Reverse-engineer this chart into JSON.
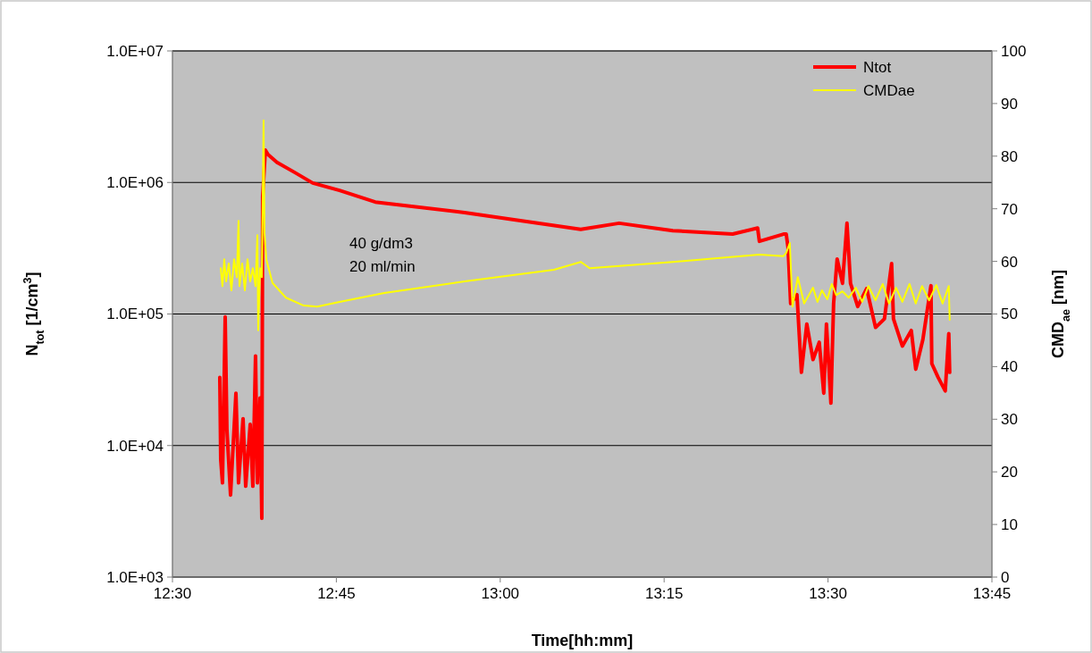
{
  "chart_data": {
    "type": "line",
    "xlabel": "Time[hh:mm]",
    "ylabel": "N$_{tot}$ [1/cm$^{3}$]",
    "y2label": "CMD$_{ae}$ [nm]",
    "xlim": [
      12.5,
      13.75
    ],
    "xticks": [
      {
        "value": 12.5,
        "label": "12:30"
      },
      {
        "value": 12.75,
        "label": "12:45"
      },
      {
        "value": 13,
        "label": "13:00"
      },
      {
        "value": 13.25,
        "label": "13:15"
      },
      {
        "value": 13.5,
        "label": "13:30"
      },
      {
        "value": 13.75,
        "label": "13:45"
      }
    ],
    "ylim": [
      1000,
      10000000
    ],
    "yticks": [
      {
        "value": 1000,
        "label": "1.0E+03"
      },
      {
        "value": 10000,
        "label": "1.0E+04"
      },
      {
        "value": 100000,
        "label": "1.0E+05"
      },
      {
        "value": 1000000,
        "label": "1.0E+06"
      },
      {
        "value": 10000000,
        "label": "1.0E+07"
      }
    ],
    "y2lim": [
      0,
      100
    ],
    "y2ticks": [
      0,
      10,
      20,
      30,
      40,
      50,
      60,
      70,
      80,
      90,
      100
    ],
    "log": "y",
    "grid": "y",
    "legend": "top right",
    "line_style": "solid",
    "marker": "none",
    "annotations": [
      "40 g/dm3",
      "20 ml/min"
    ],
    "series": [
      {
        "name": "Ntot",
        "color": "#ff0000",
        "x": [
          12.5722,
          12.5736,
          12.5763,
          12.5804,
          12.5831,
          12.5886,
          12.5968,
          12.6008,
          12.6077,
          12.6117,
          12.6186,
          12.6226,
          12.6267,
          12.6295,
          12.6336,
          12.6363,
          12.6376,
          12.6417,
          12.6458,
          12.6594,
          12.6867,
          12.7139,
          12.7548,
          12.8094,
          12.9456,
          13.1228,
          13.1814,
          13.2632,
          13.3545,
          13.3926,
          13.3953,
          13.4321,
          13.4362,
          13.439,
          13.443,
          13.4526,
          13.4594,
          13.4676,
          13.4771,
          13.4866,
          13.4935,
          13.4976,
          13.5044,
          13.5085,
          13.5139,
          13.5221,
          13.5289,
          13.5343,
          13.5453,
          13.5589,
          13.5725,
          13.5861,
          13.597,
          13.5998,
          13.6134,
          13.627,
          13.6338,
          13.6447,
          13.657,
          13.6583,
          13.6679,
          13.6788,
          13.6842,
          13.6856
        ],
        "values": [
          33000,
          7800,
          5200,
          95000,
          13000,
          4200,
          25000,
          5200,
          16000,
          4900,
          14500,
          4900,
          48000,
          5200,
          23000,
          2800,
          780000,
          1760000,
          1630000,
          1420000,
          1190000,
          990000,
          870000,
          710000,
          590000,
          440000,
          490000,
          430000,
          405000,
          450000,
          357000,
          405000,
          405000,
          320000,
          120000,
          140000,
          36000,
          84000,
          45000,
          61000,
          25000,
          84000,
          21000,
          120000,
          262000,
          171000,
          490000,
          171000,
          114000,
          156000,
          79000,
          92000,
          242000,
          92000,
          57000,
          75000,
          38000,
          64000,
          164000,
          42000,
          33000,
          26000,
          71000,
          36000
        ]
      },
      {
        "name": "CMDae",
        "color": "#ffff00",
        "axis": "y2",
        "x": [
          12.5736,
          12.5763,
          12.579,
          12.5818,
          12.5859,
          12.5899,
          12.594,
          12.5981,
          12.6008,
          12.6022,
          12.6063,
          12.6104,
          12.6145,
          12.6186,
          12.6226,
          12.6267,
          12.6295,
          12.6308,
          12.6336,
          12.6363,
          12.639,
          12.6404,
          12.6431,
          12.6526,
          12.6731,
          12.7003,
          12.7208,
          12.7548,
          12.823,
          12.9456,
          13.0819,
          13.1228,
          13.1364,
          13.2632,
          13.3953,
          13.4321,
          13.4362,
          13.4417,
          13.4458,
          13.4539,
          13.4635,
          13.4771,
          13.4839,
          13.4907,
          13.4989,
          13.5057,
          13.5125,
          13.5221,
          13.5316,
          13.5425,
          13.5521,
          13.5616,
          13.5725,
          13.5834,
          13.593,
          13.6038,
          13.6134,
          13.6243,
          13.6338,
          13.6434,
          13.6543,
          13.6652,
          13.6747,
          13.6842,
          13.6856
        ],
        "values": [
          58.7,
          55.3,
          60.4,
          56.2,
          59.6,
          54.5,
          60.4,
          57.0,
          67.7,
          55.3,
          59.6,
          54.5,
          60.4,
          56.2,
          58.7,
          55.3,
          65.0,
          46.9,
          58.7,
          57.0,
          86.8,
          65.5,
          60.4,
          55.9,
          53.1,
          51.6,
          51.4,
          52.3,
          54.0,
          56.2,
          58.4,
          59.9,
          58.7,
          59.9,
          61.3,
          61.0,
          61.6,
          63.5,
          51.4,
          57.0,
          52.0,
          55.0,
          52.3,
          54.5,
          52.8,
          55.7,
          53.6,
          54.3,
          53.1,
          55.0,
          52.3,
          55.3,
          52.6,
          55.7,
          52.0,
          55.0,
          52.3,
          55.7,
          52.0,
          55.3,
          52.6,
          55.5,
          52.0,
          55.3,
          48.9
        ]
      }
    ]
  }
}
